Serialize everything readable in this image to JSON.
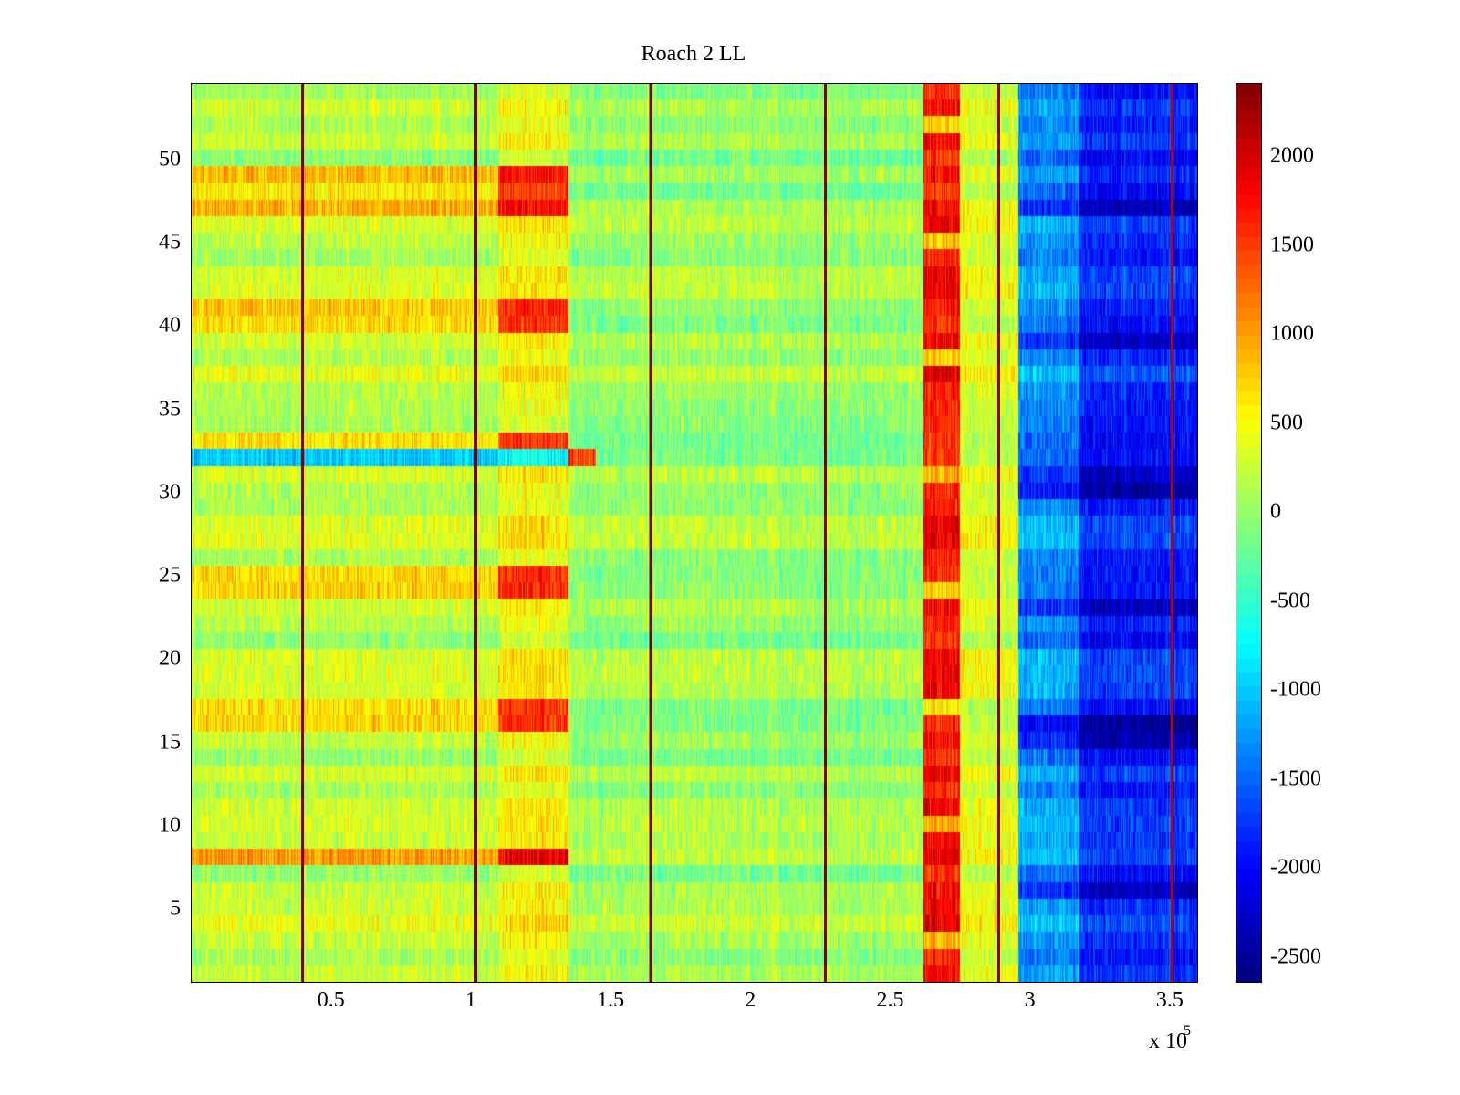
{
  "chart_data": {
    "type": "heatmap",
    "title": "Roach 2 LL",
    "xlabel": "",
    "ylabel": "",
    "xlim": [
      0,
      360000
    ],
    "ylim": [
      0.5,
      54.5
    ],
    "x_ticks": [
      50000,
      100000,
      150000,
      200000,
      250000,
      300000,
      350000
    ],
    "x_tick_labels": [
      "0.5",
      "1",
      "1.5",
      "2",
      "2.5",
      "3",
      "3.5"
    ],
    "x_multiplier_label": "x 10",
    "x_multiplier_exponent": "5",
    "y_ticks": [
      5,
      10,
      15,
      20,
      25,
      30,
      35,
      40,
      45,
      50
    ],
    "y_tick_labels": [
      "5",
      "10",
      "15",
      "20",
      "25",
      "30",
      "35",
      "40",
      "45",
      "50"
    ],
    "rows": 54,
    "colormap": "jet",
    "clim": [
      -2650,
      2400
    ],
    "colorbar_ticks": [
      2000,
      1500,
      1000,
      500,
      0,
      -500,
      -1000,
      -1500,
      -2000,
      -2500
    ],
    "colorbar_tick_labels": [
      "2000",
      "1500",
      "1000",
      "500",
      "0",
      "-500",
      "-1000",
      "-1500",
      "-2000",
      "-2500"
    ],
    "vertical_lines": [
      {
        "x": 40000,
        "value": 2400
      },
      {
        "x": 102000,
        "value": 2400
      },
      {
        "x": 164500,
        "value": 2400
      },
      {
        "x": 227000,
        "value": 2400
      },
      {
        "x": 289000,
        "value": 2400
      },
      {
        "x": 351000,
        "value": 2100
      }
    ],
    "segments": [
      {
        "x_range": [
          0,
          110000
        ],
        "base": 150,
        "note": "mostly green-yellow"
      },
      {
        "x_range": [
          110000,
          135000
        ],
        "base": 450,
        "note": "orange/red rows"
      },
      {
        "x_range": [
          135000,
          262000
        ],
        "base": 0,
        "note": "green-yellow"
      },
      {
        "x_range": [
          262000,
          275000
        ],
        "base": 1700,
        "note": "red/dark red band"
      },
      {
        "x_range": [
          275000,
          296000
        ],
        "base": 300,
        "note": "yellow-orange"
      },
      {
        "x_range": [
          296000,
          318000
        ],
        "base": -1300,
        "note": "light blue"
      },
      {
        "x_range": [
          318000,
          360000
        ],
        "base": -1850,
        "note": "dark blue"
      }
    ],
    "row_offsets": {
      "hot_rows_left": [
        8,
        16,
        17,
        24,
        25,
        33,
        40,
        41,
        47,
        48,
        49
      ],
      "cold_row_left": [
        32
      ],
      "cold_rows_right": [
        6,
        15,
        16,
        23,
        30,
        31,
        39,
        47
      ]
    }
  }
}
